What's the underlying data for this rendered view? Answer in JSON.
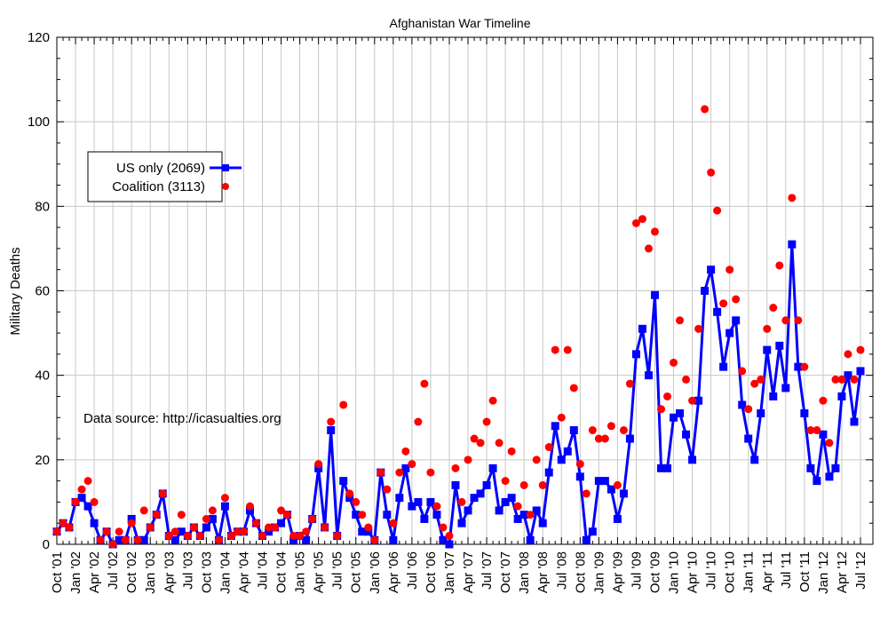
{
  "chart_data": {
    "type": "line",
    "title": "Afghanistan War Timeline",
    "xlabel": "",
    "ylabel": "Military Deaths",
    "ylim": [
      0,
      120
    ],
    "yticks": [
      0,
      20,
      40,
      60,
      80,
      100,
      120
    ],
    "grid": true,
    "legend_placement": "upper-left",
    "annotation": "Data source: http://icasualties.org",
    "x_start_month": "Oct '01",
    "xtick_labels": [
      "Oct '01",
      "Jan '02",
      "Apr '02",
      "Jul '02",
      "Oct '02",
      "Jan '03",
      "Apr '03",
      "Jul '03",
      "Oct '03",
      "Jan '04",
      "Apr '04",
      "Jul '04",
      "Oct '04",
      "Jan '05",
      "Apr '05",
      "Jul '05",
      "Oct '05",
      "Jan '06",
      "Apr '06",
      "Jul '06",
      "Oct '06",
      "Jan '07",
      "Apr '07",
      "Jul '07",
      "Oct '07",
      "Jan '08",
      "Apr '08",
      "Jul '08",
      "Oct '08",
      "Jan '09",
      "Apr '09",
      "Jul '09",
      "Oct '09",
      "Jan '10",
      "Apr '10",
      "Jul '10",
      "Oct '10",
      "Jan '11",
      "Apr '11",
      "Jul '11",
      "Oct '11",
      "Jan '12",
      "Apr '12",
      "Jul '12"
    ],
    "series": [
      {
        "name": "US only (2069)",
        "style": "line-square",
        "color": "#0000ff",
        "values": [
          3,
          5,
          4,
          10,
          11,
          9,
          5,
          1,
          3,
          0,
          1,
          1,
          6,
          1,
          1,
          4,
          7,
          12,
          2,
          1,
          3,
          2,
          4,
          2,
          4,
          6,
          1,
          9,
          2,
          3,
          3,
          8,
          5,
          2,
          3,
          4,
          5,
          7,
          1,
          2,
          1,
          6,
          18,
          4,
          27,
          2,
          15,
          11,
          7,
          3,
          3,
          1,
          17,
          7,
          1,
          11,
          18,
          9,
          10,
          6,
          10,
          7,
          1,
          0,
          14,
          5,
          8,
          11,
          12,
          14,
          18,
          8,
          10,
          11,
          6,
          7,
          1,
          8,
          5,
          17,
          28,
          20,
          22,
          27,
          16,
          1,
          3,
          15,
          15,
          13,
          6,
          12,
          25,
          45,
          51,
          40,
          59,
          18,
          18,
          30,
          31,
          26,
          20,
          34,
          60,
          65,
          55,
          42,
          50,
          53,
          33,
          25,
          20,
          31,
          46,
          35,
          47,
          37,
          71,
          42,
          31,
          18,
          15,
          26,
          16,
          18,
          35,
          40,
          29,
          41
        ]
      },
      {
        "name": "Coalition (3113)",
        "style": "dot",
        "color": "#ff0000",
        "values": [
          3,
          5,
          4,
          10,
          13,
          15,
          10,
          1,
          3,
          0,
          3,
          1,
          5,
          1,
          8,
          4,
          7,
          12,
          2,
          3,
          7,
          2,
          4,
          2,
          6,
          8,
          1,
          11,
          2,
          3,
          3,
          9,
          5,
          2,
          4,
          4,
          8,
          7,
          2,
          2,
          3,
          6,
          19,
          4,
          29,
          2,
          33,
          12,
          10,
          7,
          4,
          1,
          17,
          13,
          5,
          17,
          22,
          19,
          29,
          38,
          17,
          9,
          4,
          2,
          18,
          10,
          20,
          25,
          24,
          29,
          34,
          24,
          15,
          22,
          9,
          14,
          7,
          20,
          14,
          23,
          46,
          30,
          46,
          37,
          19,
          12,
          27,
          25,
          25,
          28,
          14,
          27,
          38,
          76,
          77,
          70,
          74,
          32,
          35,
          43,
          53,
          39,
          34,
          51,
          103,
          88,
          79,
          57,
          65,
          58,
          41,
          32,
          38,
          39,
          51,
          56,
          66,
          53,
          82,
          53,
          42,
          27,
          27,
          34,
          24,
          39,
          39,
          45,
          39,
          46
        ]
      }
    ]
  }
}
